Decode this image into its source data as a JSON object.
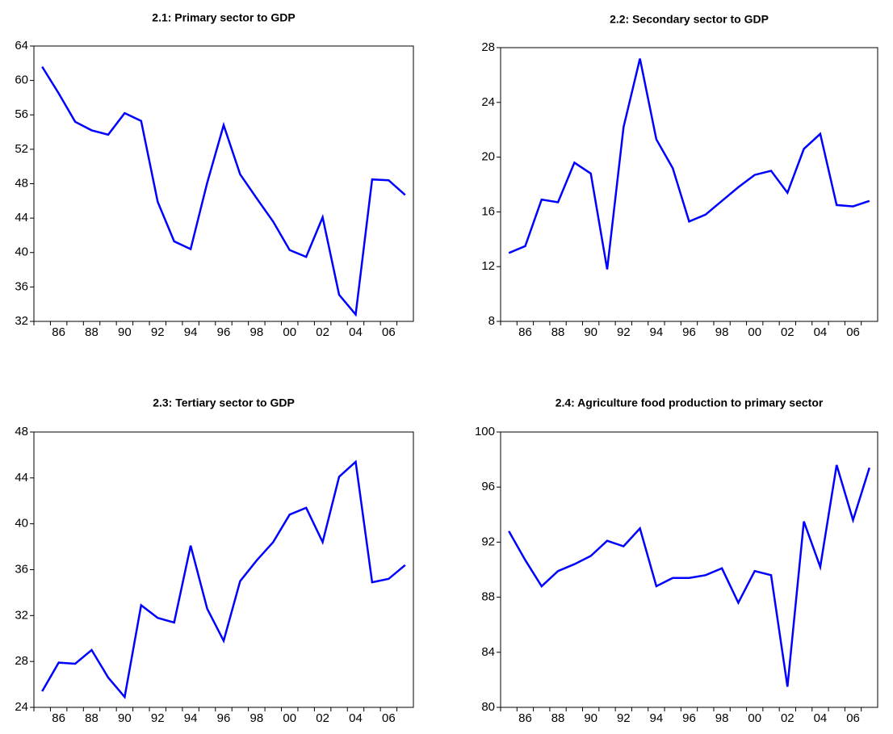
{
  "chart_data": [
    {
      "type": "line",
      "title": "2.1: Primary sector to GDP",
      "categories": [
        null,
        "86",
        null,
        "88",
        null,
        "90",
        null,
        "92",
        null,
        "94",
        null,
        "96",
        null,
        "98",
        null,
        "00",
        null,
        "02",
        null,
        "04",
        null,
        "06",
        null
      ],
      "series": [
        {
          "color": "#0000ff",
          "values": [
            61.6,
            58.5,
            55.2,
            54.2,
            53.7,
            56.2,
            55.3,
            45.9,
            41.3,
            40.4,
            48.1,
            54.8,
            49.1,
            46.3,
            43.6,
            40.3,
            39.5,
            44.1,
            35.1,
            32.8,
            48.5,
            48.4,
            46.7
          ]
        }
      ],
      "ylim": [
        32,
        64
      ],
      "yticks": [
        32,
        36,
        40,
        44,
        48,
        52,
        56,
        60,
        64
      ]
    },
    {
      "type": "line",
      "title": "2.2: Secondary sector to GDP",
      "categories": [
        null,
        "86",
        null,
        "88",
        null,
        "90",
        null,
        "92",
        null,
        "94",
        null,
        "96",
        null,
        "98",
        null,
        "00",
        null,
        "02",
        null,
        "04",
        null,
        "06",
        null
      ],
      "series": [
        {
          "color": "#0000ff",
          "values": [
            13.0,
            13.5,
            16.9,
            16.7,
            19.6,
            18.8,
            11.8,
            22.2,
            27.2,
            21.3,
            19.2,
            15.3,
            15.8,
            16.8,
            17.8,
            18.7,
            19.0,
            17.4,
            20.6,
            21.7,
            16.5,
            16.4,
            16.8
          ]
        }
      ],
      "ylim": [
        8,
        28
      ],
      "yticks": [
        8,
        12,
        16,
        20,
        24,
        28
      ]
    },
    {
      "type": "line",
      "title": "2.3: Tertiary sector to GDP",
      "categories": [
        null,
        "86",
        null,
        "88",
        null,
        "90",
        null,
        "92",
        null,
        "94",
        null,
        "96",
        null,
        "98",
        null,
        "00",
        null,
        "02",
        null,
        "04",
        null,
        "06",
        null
      ],
      "series": [
        {
          "color": "#0000ff",
          "values": [
            25.4,
            27.9,
            27.8,
            29.0,
            26.6,
            24.9,
            32.9,
            31.8,
            31.4,
            38.1,
            32.6,
            29.8,
            35.0,
            36.8,
            38.4,
            40.8,
            41.4,
            38.4,
            44.1,
            45.4,
            34.9,
            35.2,
            36.4
          ]
        }
      ],
      "ylim": [
        24,
        48
      ],
      "yticks": [
        24,
        28,
        32,
        36,
        40,
        44,
        48
      ]
    },
    {
      "type": "line",
      "title": "2.4: Agriculture food production to primary sector",
      "categories": [
        null,
        "86",
        null,
        "88",
        null,
        "90",
        null,
        "92",
        null,
        "94",
        null,
        "96",
        null,
        "98",
        null,
        "00",
        null,
        "02",
        null,
        "04",
        null,
        "06",
        null
      ],
      "series": [
        {
          "color": "#0000ff",
          "values": [
            92.8,
            90.7,
            88.8,
            89.9,
            90.4,
            91.0,
            92.1,
            91.7,
            93.0,
            88.8,
            89.4,
            89.4,
            89.6,
            90.1,
            87.6,
            89.9,
            89.6,
            81.5,
            93.5,
            90.2,
            97.6,
            93.6,
            97.4
          ]
        }
      ],
      "ylim": [
        80,
        100
      ],
      "yticks": [
        80,
        84,
        88,
        92,
        96,
        100
      ]
    }
  ]
}
